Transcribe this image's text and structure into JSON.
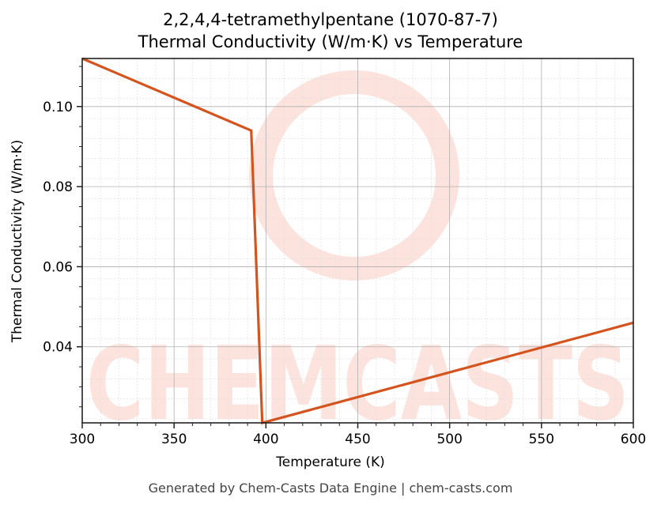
{
  "title_line1": "2,2,4,4-tetramethylpentane (1070-87-7)",
  "title_line2": "Thermal Conductivity (W/m·K) vs Temperature",
  "xlabel": "Temperature (K)",
  "ylabel": "Thermal Conductivity (W/m·K)",
  "footer": "Generated by Chem-Casts Data Engine | chem-casts.com",
  "watermark": "CHEMCASTS",
  "colors": {
    "line": "#d4541f",
    "watermark": "#fde3dd",
    "grid_major": "#b0b0b0",
    "grid_minor": "#dddddd"
  },
  "x_ticks": [
    "300",
    "350",
    "400",
    "450",
    "500",
    "550",
    "600"
  ],
  "y_ticks": [
    "0.04",
    "0.06",
    "0.08",
    "0.10"
  ],
  "chart_data": {
    "type": "line",
    "title": "2,2,4,4-tetramethylpentane (1070-87-7)\nThermal Conductivity (W/m·K) vs Temperature",
    "xlabel": "Temperature (K)",
    "ylabel": "Thermal Conductivity (W/m·K)",
    "xlim": [
      300,
      600
    ],
    "ylim": [
      0.021,
      0.112
    ],
    "grid": true,
    "series": [
      {
        "name": "Thermal Conductivity",
        "x": [
          300,
          392,
          398,
          600
        ],
        "y": [
          0.112,
          0.094,
          0.021,
          0.046
        ]
      }
    ]
  }
}
